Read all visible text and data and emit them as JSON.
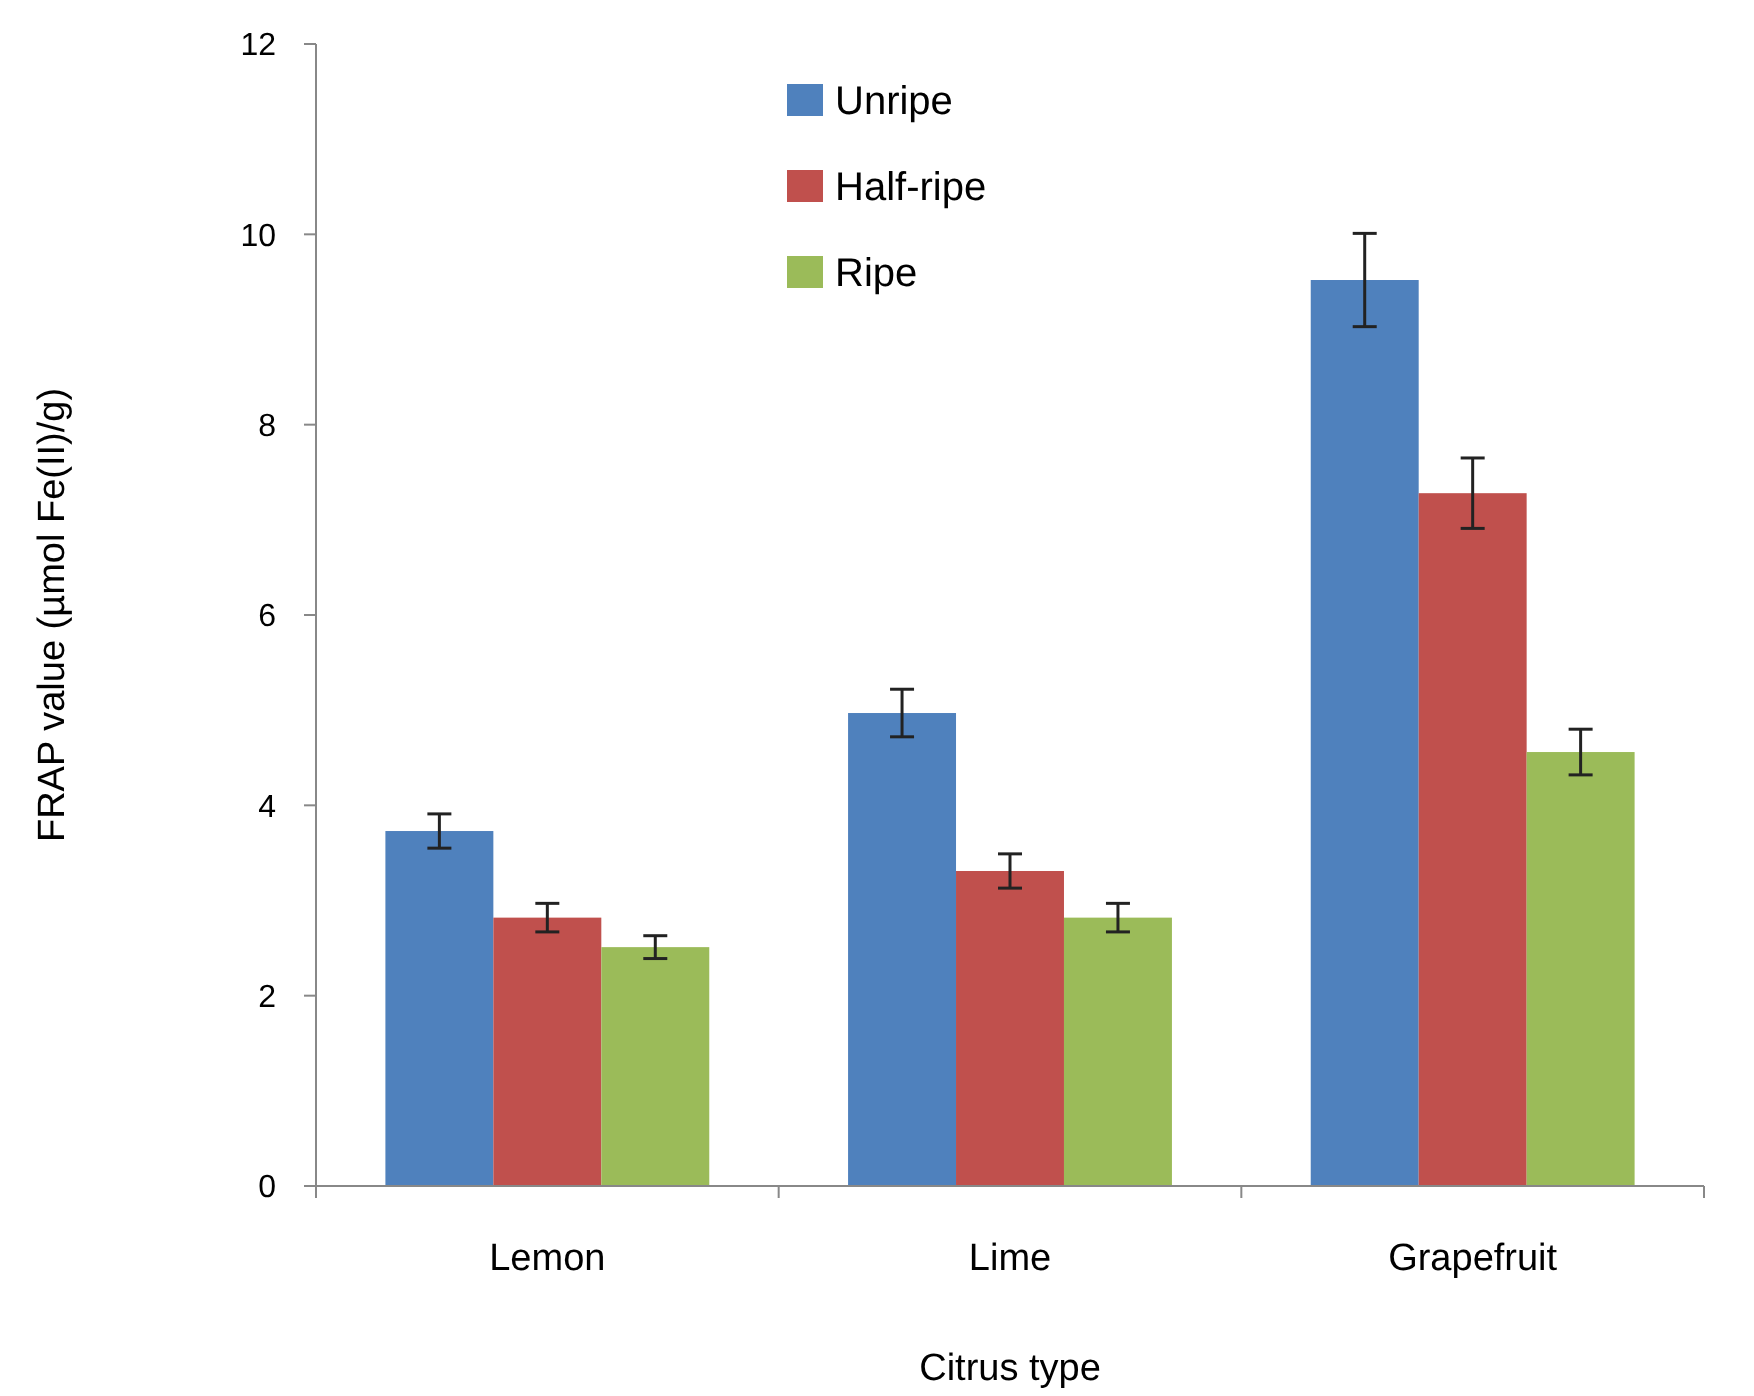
{
  "chart_data": {
    "type": "bar",
    "xlabel": "Citrus type",
    "ylabel": "FRAP value (µmol Fe(II)/g)",
    "categories": [
      "Lemon",
      "Lime",
      "Grapefruit"
    ],
    "series": [
      {
        "name": "Unripe",
        "color": "#4f81bd",
        "values": [
          3.73,
          4.97,
          9.52
        ],
        "errors": [
          0.18,
          0.25,
          0.49
        ]
      },
      {
        "name": "Half-ripe",
        "color": "#c0504d",
        "values": [
          2.82,
          3.31,
          7.28
        ],
        "errors": [
          0.15,
          0.18,
          0.37
        ]
      },
      {
        "name": "Ripe",
        "color": "#9bbb59",
        "values": [
          2.51,
          2.82,
          4.56
        ],
        "errors": [
          0.12,
          0.15,
          0.24
        ]
      }
    ],
    "ylim": [
      0,
      12
    ],
    "yticks": [
      0,
      2,
      4,
      6,
      8,
      10,
      12
    ],
    "grid": false,
    "legend": "top"
  }
}
